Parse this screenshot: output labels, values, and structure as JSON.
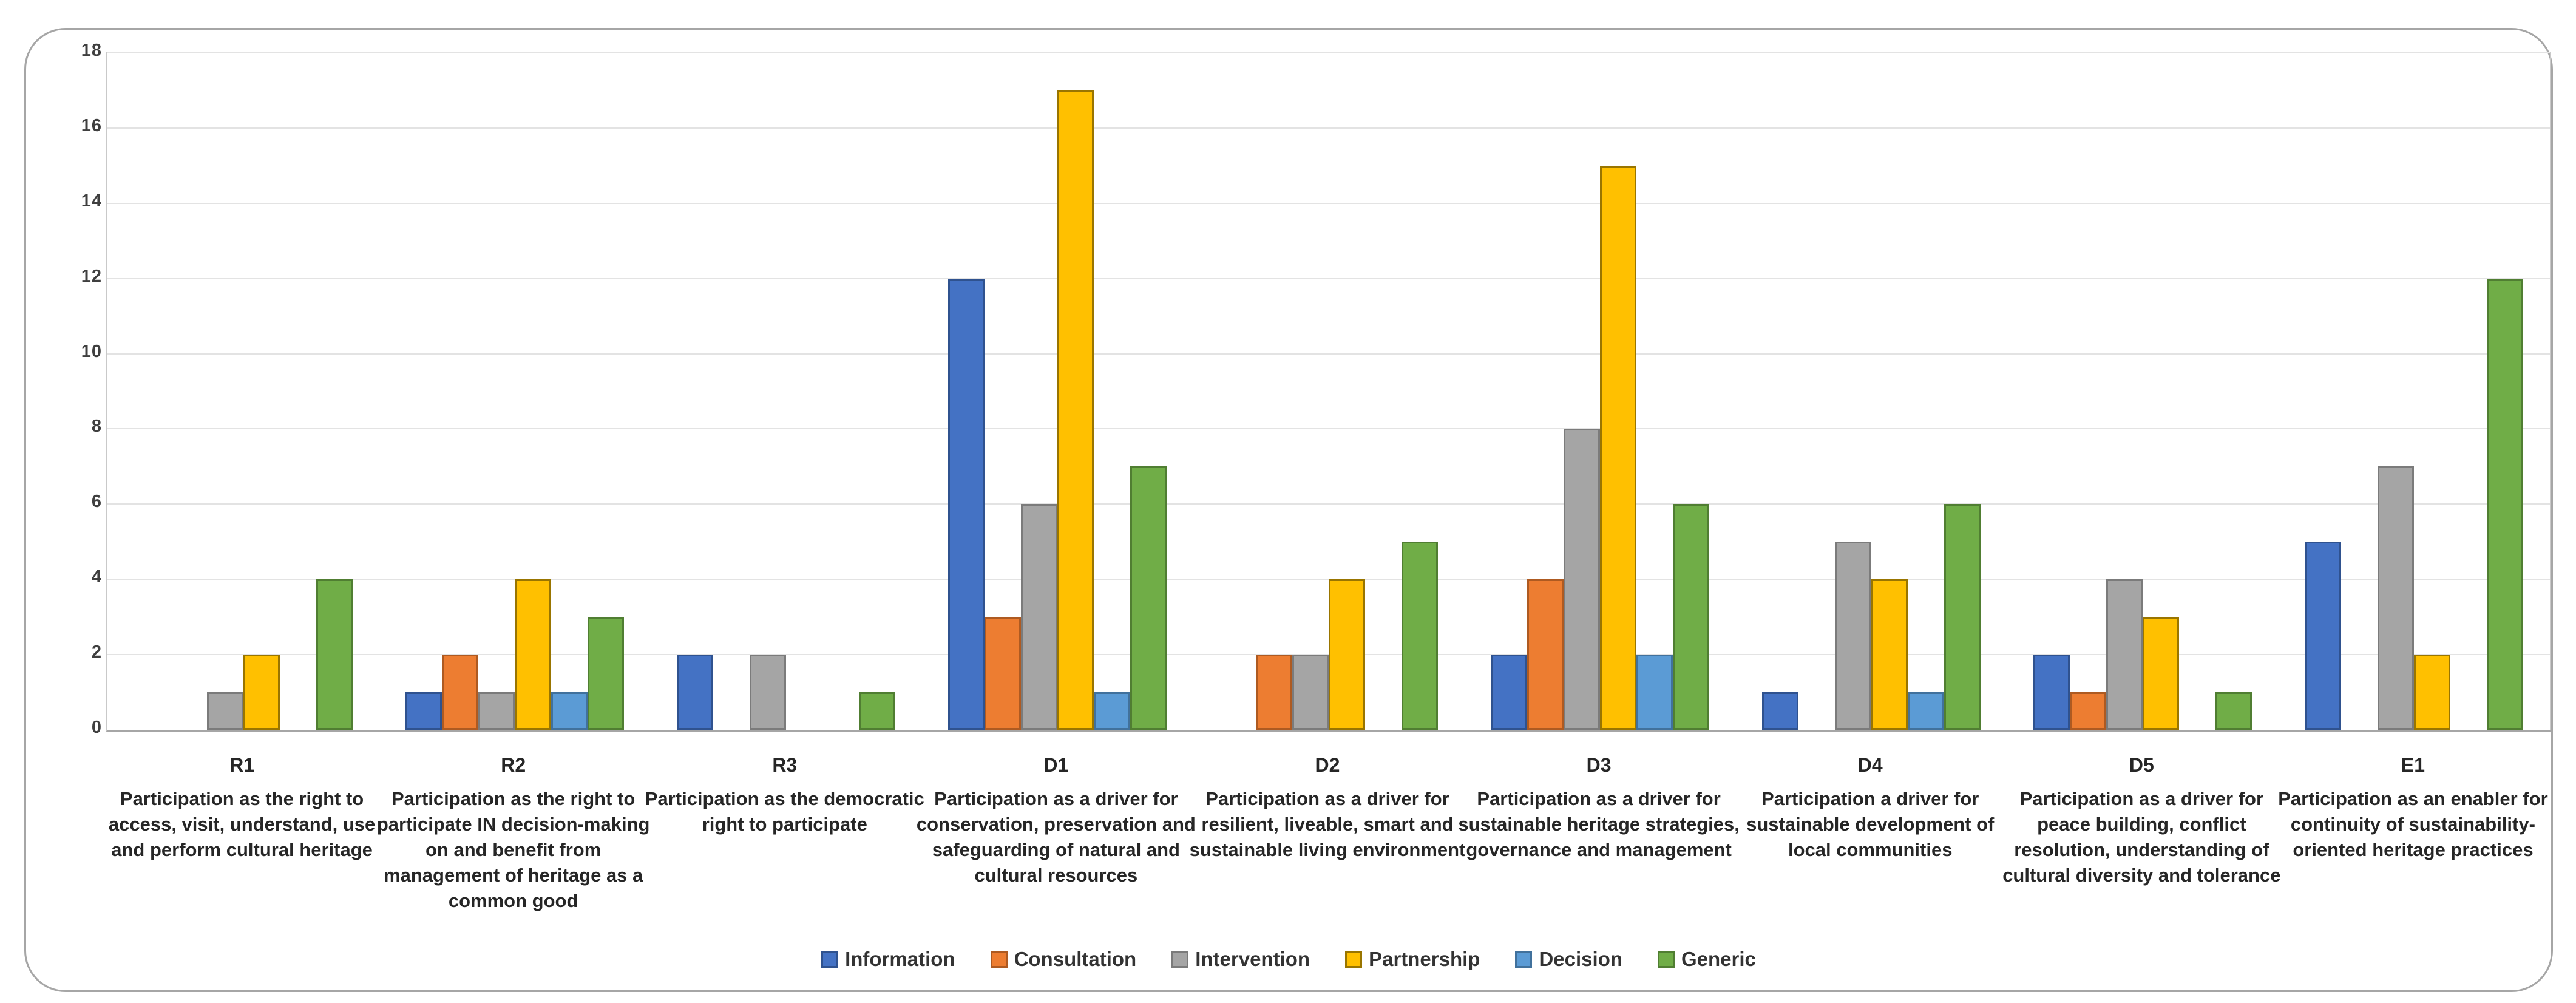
{
  "chart_data": {
    "type": "bar",
    "title": "",
    "xlabel": "",
    "ylabel": "",
    "ylim": [
      0,
      18
    ],
    "ytick_step": 2,
    "yticks": [
      "0",
      "2",
      "4",
      "6",
      "8",
      "10",
      "12",
      "14",
      "16",
      "18"
    ],
    "grid": true,
    "legend_position": "bottom-center",
    "axis_color": "#a6a6a6",
    "gridline_color": "#e3e3e3",
    "categories": [
      {
        "code": "R1",
        "label": "Participation as the right to access, visit, understand, use and perform cultural heritage"
      },
      {
        "code": "R2",
        "label": "Participation as the right to participate IN decision-making on and benefit from management of heritage as a common good"
      },
      {
        "code": "R3",
        "label": "Participation as the democratic right to participate"
      },
      {
        "code": "D1",
        "label": "Participation as a driver for conservation, preservation and safeguarding of natural and cultural resources"
      },
      {
        "code": "D2",
        "label": "Participation as a driver for resilient, liveable, smart and sustainable living environment"
      },
      {
        "code": "D3",
        "label": "Participation as a driver for sustainable heritage strategies, governance and management"
      },
      {
        "code": "D4",
        "label": "Participation a driver for sustainable development of local communities"
      },
      {
        "code": "D5",
        "label": "Participation as a driver for peace building, conflict resolution, understanding of cultural diversity and tolerance"
      },
      {
        "code": "E1",
        "label": "Participation as an enabler for continuity of sustainability-oriented heritage practices"
      }
    ],
    "series": [
      {
        "name": "Information",
        "color": "#4472C4",
        "border": "#2F528F",
        "values": [
          0,
          1,
          2,
          12,
          0,
          2,
          1,
          2,
          5
        ]
      },
      {
        "name": "Consultation",
        "color": "#ED7D31",
        "border": "#AE5A21",
        "values": [
          0,
          2,
          0,
          3,
          2,
          4,
          0,
          1,
          0
        ]
      },
      {
        "name": "Intervention",
        "color": "#A5A5A5",
        "border": "#7B7B7B",
        "values": [
          1,
          1,
          2,
          6,
          2,
          8,
          5,
          4,
          7
        ]
      },
      {
        "name": "Partnership",
        "color": "#FFC000",
        "border": "#997500",
        "values": [
          2,
          4,
          0,
          17,
          4,
          15,
          4,
          3,
          2
        ]
      },
      {
        "name": "Decision",
        "color": "#5B9BD5",
        "border": "#41719C",
        "values": [
          0,
          1,
          0,
          1,
          0,
          2,
          1,
          0,
          0
        ]
      },
      {
        "name": "Generic",
        "color": "#70AD47",
        "border": "#507E32",
        "values": [
          4,
          3,
          1,
          7,
          5,
          6,
          6,
          1,
          12
        ]
      }
    ]
  }
}
